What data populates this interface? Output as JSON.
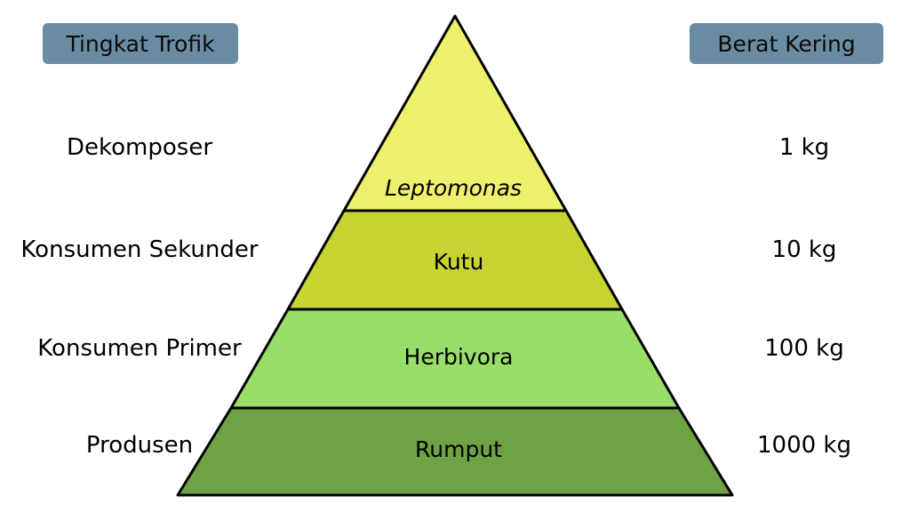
{
  "headers": {
    "left": "Tingkat Trofik",
    "right": "Berat Kering"
  },
  "levels": [
    {
      "trophic": "Dekomposer",
      "organism": "Leptomonas",
      "weight": "1 kg",
      "italic": true,
      "color": "#eef06c"
    },
    {
      "trophic": "Konsumen Sekunder",
      "organism": "Kutu",
      "weight": "10 kg",
      "italic": false,
      "color": "#c8d432"
    },
    {
      "trophic": "Konsumen Primer",
      "organism": "Herbivora",
      "weight": "100 kg",
      "italic": false,
      "color": "#9ade6a"
    },
    {
      "trophic": "Produsen",
      "organism": "Rumput",
      "weight": "1000 kg",
      "italic": false,
      "color": "#6fa244"
    }
  ],
  "colors": {
    "header_bg": "#6a8ca3",
    "outline": "#000000"
  }
}
